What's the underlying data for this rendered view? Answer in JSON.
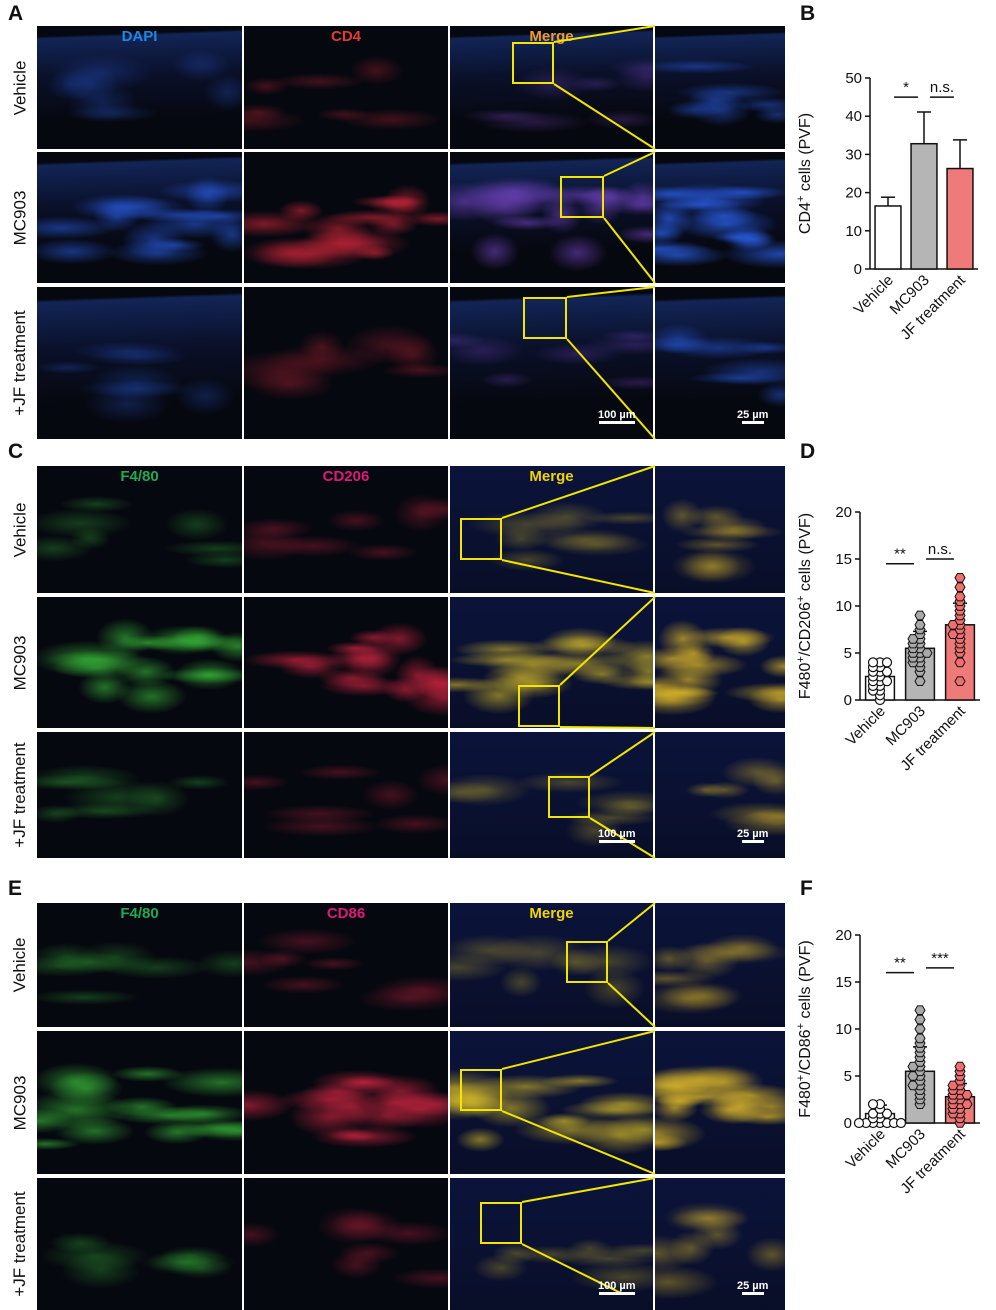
{
  "panels": {
    "A": {
      "letter": "A",
      "channels": [
        "DAPI",
        "CD4",
        "Merge"
      ],
      "channel_colors": [
        "#1e88e5",
        "#e53935",
        "#ef9a2b"
      ],
      "rows": [
        "Vehicle",
        "MC903",
        "+JF treatment"
      ],
      "scale_main": "100 µm",
      "scale_zoom": "25 µm"
    },
    "C": {
      "letter": "C",
      "channels": [
        "F4/80",
        "CD206",
        "Merge"
      ],
      "channel_colors": [
        "#1faa55",
        "#e0187a",
        "#f2d400"
      ],
      "rows": [
        "Vehicle",
        "MC903",
        "+JF treatment"
      ],
      "scale_main": "100 µm",
      "scale_zoom": "25 µm"
    },
    "E": {
      "letter": "E",
      "channels": [
        "F4/80",
        "CD86",
        "Merge"
      ],
      "channel_colors": [
        "#1faa55",
        "#e0187a",
        "#f2d400"
      ],
      "rows": [
        "Vehicle",
        "MC903",
        "+JF treatment"
      ],
      "scale_main": "100 µm",
      "scale_zoom": "25 µm"
    }
  },
  "chart_data": [
    {
      "letter": "B",
      "type": "bar",
      "categories": [
        "Vehicle",
        "MC903",
        "JF treatment"
      ],
      "values": [
        16.5,
        32.8,
        26.3
      ],
      "errors": [
        2.3,
        8.3,
        7.5
      ],
      "fill_colors": [
        "#ffffff",
        "#b5b5b5",
        "#ef7a7a"
      ],
      "ylabel_prefix": "CD4",
      "ylabel_sup": "+",
      "ylabel_suffix": " cells (PVF)",
      "ylim": [
        0,
        50
      ],
      "yticks": [
        0,
        10,
        20,
        30,
        40,
        50
      ],
      "significance": [
        {
          "from": 0,
          "to": 1,
          "label": "*",
          "y": 45
        },
        {
          "from": 1,
          "to": 2,
          "label": "n.s.",
          "y": 45
        }
      ]
    },
    {
      "letter": "D",
      "type": "bar",
      "categories": [
        "Vehicle",
        "MC903",
        "JF treatment"
      ],
      "values": [
        2.5,
        5.5,
        8.0
      ],
      "errors": [
        1.1,
        1.8,
        2.3
      ],
      "fill_colors": [
        "#ffffff",
        "#b5b5b5",
        "#ef7a7a"
      ],
      "ylabel_prefix": "F480",
      "ylabel_sup": "+",
      "ylabel_mid": "/CD206",
      "ylabel_sup2": "+",
      "ylabel_suffix": " cells (PVF)",
      "ylim": [
        0,
        20
      ],
      "yticks": [
        0,
        5,
        10,
        15,
        20
      ],
      "points": [
        [
          0,
          0.5,
          1,
          1,
          1.5,
          1.5,
          2,
          2,
          2,
          2.5,
          2.5,
          3,
          3,
          3,
          3.5,
          3.5,
          4,
          4,
          4
        ],
        [
          2,
          3,
          3.5,
          4,
          4,
          4.5,
          4.5,
          5,
          5,
          5,
          5.5,
          5.5,
          6,
          6,
          6.5,
          6.5,
          7,
          7.5,
          8,
          9
        ],
        [
          2,
          4,
          5,
          5.5,
          6,
          6.5,
          7,
          7,
          7.5,
          8,
          8,
          8.5,
          9,
          9.5,
          10,
          10.5,
          11,
          12,
          13
        ]
      ],
      "significance": [
        {
          "from": 0,
          "to": 1,
          "label": "**",
          "y": 14.5
        },
        {
          "from": 1,
          "to": 2,
          "label": "n.s.",
          "y": 15
        }
      ]
    },
    {
      "letter": "F",
      "type": "bar",
      "categories": [
        "Vehicle",
        "MC903",
        "JF treatment"
      ],
      "values": [
        1.0,
        5.5,
        2.8
      ],
      "errors": [
        0.9,
        2.6,
        1.4
      ],
      "fill_colors": [
        "#ffffff",
        "#b5b5b5",
        "#ef7a7a"
      ],
      "ylabel_prefix": "F480",
      "ylabel_sup": "+",
      "ylabel_mid": "/CD86",
      "ylabel_sup2": "+",
      "ylabel_suffix": " cells (PVF)",
      "ylim": [
        0,
        20
      ],
      "yticks": [
        0,
        5,
        10,
        15,
        20
      ],
      "points": [
        [
          0,
          0,
          0,
          0,
          0,
          0,
          0,
          0.5,
          0.5,
          1,
          1,
          1,
          1.5,
          2,
          2
        ],
        [
          2,
          2.5,
          3,
          3.5,
          4,
          4,
          4.5,
          5,
          5,
          5.5,
          6,
          6,
          6.5,
          7,
          7.5,
          8,
          8.5,
          9,
          10,
          11,
          12
        ],
        [
          0,
          0.5,
          1,
          1,
          1.5,
          1.5,
          2,
          2,
          2,
          2.5,
          2.5,
          3,
          3,
          3,
          3.5,
          3.5,
          4,
          4,
          4.5,
          5,
          5.5,
          6
        ]
      ],
      "significance": [
        {
          "from": 0,
          "to": 1,
          "label": "**",
          "y": 16
        },
        {
          "from": 1,
          "to": 2,
          "label": "***",
          "y": 16.5
        }
      ]
    }
  ]
}
